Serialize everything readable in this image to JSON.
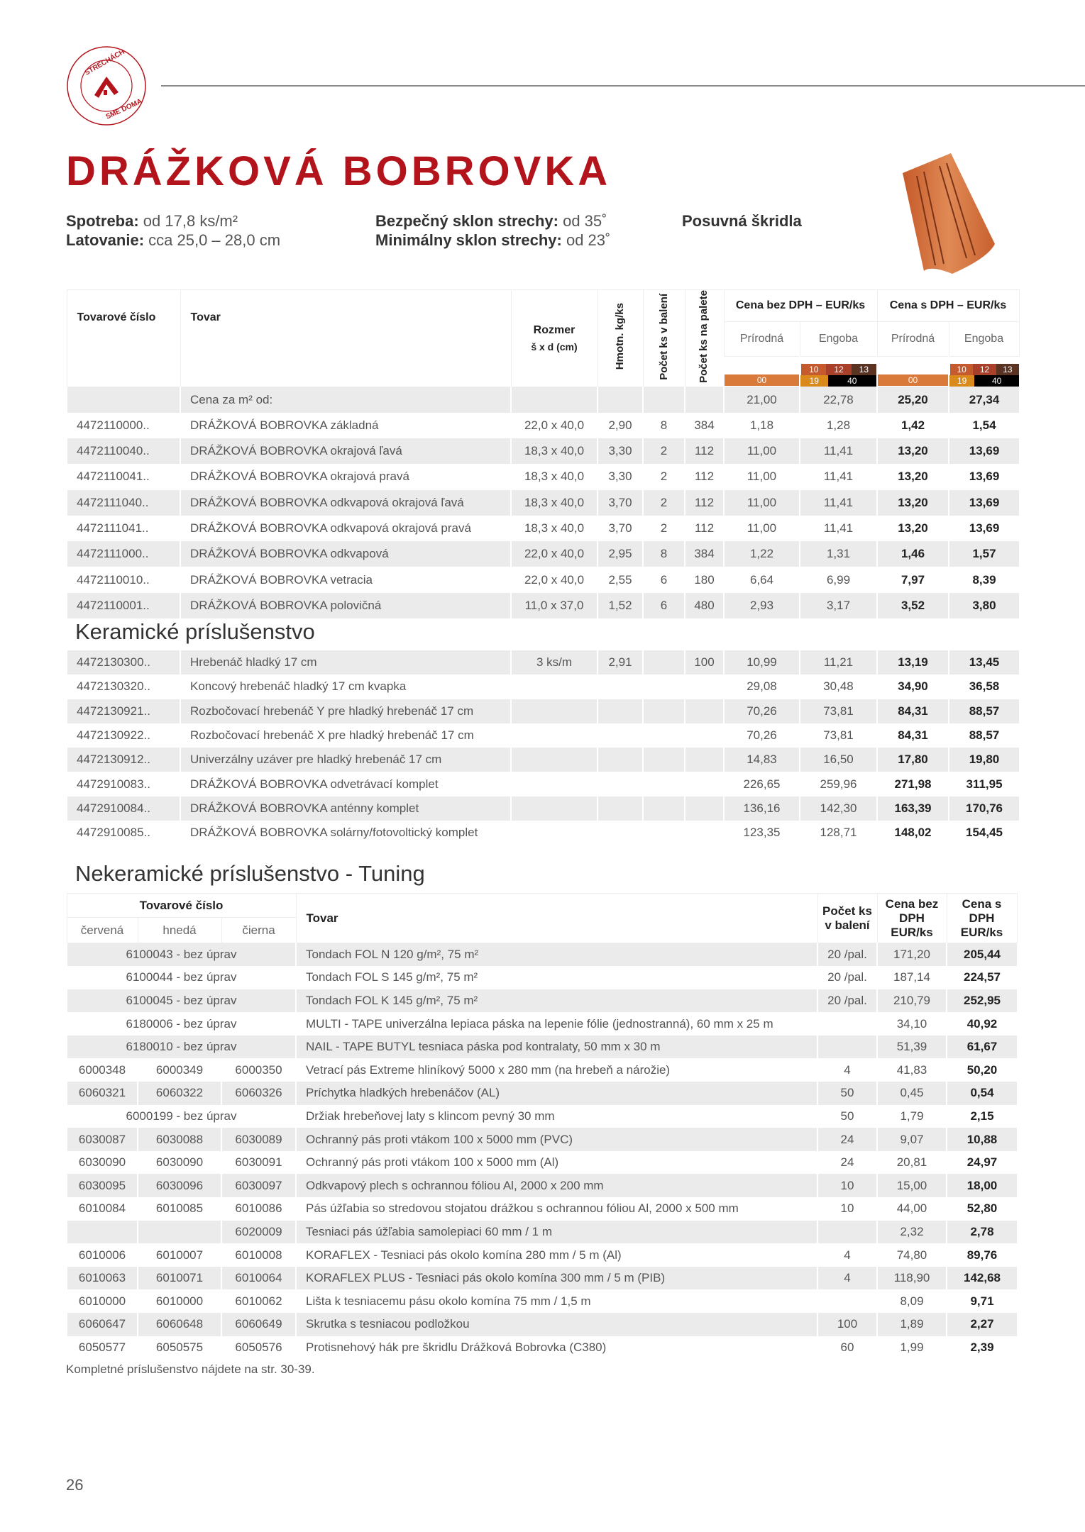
{
  "logo": {
    "text_top": "V STRECHÁCH",
    "text_bottom": "SME DOMA"
  },
  "title": "DRÁŽKOVÁ BOBROVKA",
  "specs": {
    "spotreba_label": "Spotreba:",
    "spotreba_value": " od 17,8 ks/m²",
    "latovanie_label": "Latovanie:",
    "latovanie_value": " cca 25,0 – 28,0 cm",
    "bezpecny_label": "Bezpečný sklon strechy:",
    "bezpecny_value": " od 35˚",
    "minimalny_label": "Minimálny sklon strechy:",
    "minimalny_value": " od 23˚",
    "type": "Posuvná škridla"
  },
  "table1": {
    "headers": {
      "code": "Tovarové číslo",
      "name": "Tovar",
      "size": "Rozmer",
      "size_unit": "š x d (cm)",
      "weight": "Hmotn. kg/ks",
      "pack": "Počet ks v balení",
      "pallet": "Počet ks na palete",
      "price_no_vat": "Cena bez DPH – EUR/ks",
      "price_vat": "Cena s DPH – EUR/ks",
      "natural": "Prírodná",
      "engoba": "Engoba"
    },
    "swatches": {
      "natural": [
        {
          "code": "00",
          "color": "#d9793a"
        }
      ],
      "engoba_top": [
        {
          "code": "10",
          "color": "#c45a2e"
        },
        {
          "code": "12",
          "color": "#a8402a"
        },
        {
          "code": "13",
          "color": "#5a3322"
        }
      ],
      "engoba_bottom": [
        {
          "code": "19",
          "color": "#d98a1a"
        },
        {
          "code": "40",
          "color": "#000000"
        }
      ]
    },
    "m2_row": {
      "label": "Cena za m² od:",
      "prices": [
        "21,00",
        "22,78",
        "25,20",
        "27,34"
      ]
    },
    "rows": [
      [
        "4472110000..",
        "DRÁŽKOVÁ BOBROVKA základná",
        "22,0 x 40,0",
        "2,90",
        "8",
        "384",
        "1,18",
        "1,28",
        "1,42",
        "1,54"
      ],
      [
        "4472110040..",
        "DRÁŽKOVÁ BOBROVKA okrajová ľavá",
        "18,3 x 40,0",
        "3,30",
        "2",
        "112",
        "11,00",
        "11,41",
        "13,20",
        "13,69"
      ],
      [
        "4472110041..",
        "DRÁŽKOVÁ BOBROVKA okrajová pravá",
        "18,3 x 40,0",
        "3,30",
        "2",
        "112",
        "11,00",
        "11,41",
        "13,20",
        "13,69"
      ],
      [
        "4472111040..",
        "DRÁŽKOVÁ BOBROVKA odkvapová okrajová ľavá",
        "18,3 x 40,0",
        "3,70",
        "2",
        "112",
        "11,00",
        "11,41",
        "13,20",
        "13,69"
      ],
      [
        "4472111041..",
        "DRÁŽKOVÁ BOBROVKA odkvapová okrajová pravá",
        "18,3 x 40,0",
        "3,70",
        "2",
        "112",
        "11,00",
        "11,41",
        "13,20",
        "13,69"
      ],
      [
        "4472111000..",
        "DRÁŽKOVÁ BOBROVKA odkvapová",
        "22,0 x 40,0",
        "2,95",
        "8",
        "384",
        "1,22",
        "1,31",
        "1,46",
        "1,57"
      ],
      [
        "4472110010..",
        "DRÁŽKOVÁ BOBROVKA vetracia",
        "22,0 x 40,0",
        "2,55",
        "6",
        "180",
        "6,64",
        "6,99",
        "7,97",
        "8,39"
      ],
      [
        "4472110001..",
        "DRÁŽKOVÁ BOBROVKA polovičná",
        "11,0 x 37,0",
        "1,52",
        "6",
        "480",
        "2,93",
        "3,17",
        "3,52",
        "3,80"
      ]
    ]
  },
  "section2_title": "Keramické príslušenstvo",
  "table2": {
    "rows": [
      [
        "4472130300..",
        "Hrebenáč hladký 17 cm",
        "3 ks/m",
        "2,91",
        "",
        "100",
        "10,99",
        "11,21",
        "13,19",
        "13,45"
      ],
      [
        "4472130320..",
        "Koncový hrebenáč hladký 17 cm kvapka",
        "",
        "",
        "",
        "",
        "29,08",
        "30,48",
        "34,90",
        "36,58"
      ],
      [
        "4472130921..",
        "Rozbočovací hrebenáč Y pre hladký hrebenáč 17 cm",
        "",
        "",
        "",
        "",
        "70,26",
        "73,81",
        "84,31",
        "88,57"
      ],
      [
        "4472130922..",
        "Rozbočovací hrebenáč X pre hladký hrebenáč 17 cm",
        "",
        "",
        "",
        "",
        "70,26",
        "73,81",
        "84,31",
        "88,57"
      ],
      [
        "4472130912..",
        "Univerzálny uzáver pre hladký hrebenáč 17 cm",
        "",
        "",
        "",
        "",
        "14,83",
        "16,50",
        "17,80",
        "19,80"
      ],
      [
        "4472910083..",
        "DRÁŽKOVÁ BOBROVKA odvetrávací komplet",
        "",
        "",
        "",
        "",
        "226,65",
        "259,96",
        "271,98",
        "311,95"
      ],
      [
        "4472910084..",
        "DRÁŽKOVÁ BOBROVKA anténny komplet",
        "",
        "",
        "",
        "",
        "136,16",
        "142,30",
        "163,39",
        "170,76"
      ],
      [
        "4472910085..",
        "DRÁŽKOVÁ BOBROVKA solárny/fotovoltický komplet",
        "",
        "",
        "",
        "",
        "123,35",
        "128,71",
        "148,02",
        "154,45"
      ]
    ]
  },
  "section3_title": "Nekeramické príslušenstvo - Tuning",
  "table3": {
    "headers": {
      "code": "Tovarové číslo",
      "red": "červená",
      "brown": "hnedá",
      "black": "čierna",
      "name": "Tovar",
      "pack": "Počet ks v balení",
      "price_no_vat": "Cena bez DPH EUR/ks",
      "price_vat": "Cena s DPH EUR/ks"
    },
    "rows": [
      {
        "merged": "6100043 - bez úprav",
        "name": "Tondach FOL N 120 g/m², 75 m²",
        "pack": "20 /pal.",
        "p1": "171,20",
        "p2": "205,44"
      },
      {
        "merged": "6100044 - bez úprav",
        "name": "Tondach FOL S 145 g/m², 75 m²",
        "pack": "20 /pal.",
        "p1": "187,14",
        "p2": "224,57"
      },
      {
        "merged": "6100045 - bez úprav",
        "name": "Tondach FOL K 145 g/m², 75 m²",
        "pack": "20 /pal.",
        "p1": "210,79",
        "p2": "252,95"
      },
      {
        "merged": "6180006 - bez úprav",
        "name": "MULTI - TAPE univerzálna lepiaca páska na lepenie fólie (jednostranná), 60 mm x 25 m",
        "pack": "",
        "p1": "34,10",
        "p2": "40,92"
      },
      {
        "merged": "6180010 - bez úprav",
        "name": "NAIL - TAPE BUTYL tesniaca páska pod kontralaty, 50 mm x 30 m",
        "pack": "",
        "p1": "51,39",
        "p2": "61,67"
      },
      {
        "red": "6000348",
        "brown": "6000349",
        "black": "6000350",
        "name": "Vetrací pás Extreme hliníkový 5000 x 280 mm (na hrebeň a nárožie)",
        "pack": "4",
        "p1": "41,83",
        "p2": "50,20"
      },
      {
        "red": "6060321",
        "brown": "6060322",
        "black": "6060326",
        "name": "Príchytka hladkých hrebenáčov (AL)",
        "pack": "50",
        "p1": "0,45",
        "p2": "0,54"
      },
      {
        "merged": "6000199 - bez úprav",
        "name": "Držiak hrebeňovej laty s klincom pevný 30 mm",
        "pack": "50",
        "p1": "1,79",
        "p2": "2,15"
      },
      {
        "red": "6030087",
        "brown": "6030088",
        "black": "6030089",
        "name": "Ochranný pás proti vtákom 100 x 5000 mm (PVC)",
        "pack": "24",
        "p1": "9,07",
        "p2": "10,88"
      },
      {
        "red": "6030090",
        "brown": "6030090",
        "black": "6030091",
        "name": "Ochranný pás proti vtákom 100 x 5000 mm (Al)",
        "pack": "24",
        "p1": "20,81",
        "p2": "24,97"
      },
      {
        "red": "6030095",
        "brown": "6030096",
        "black": "6030097",
        "name": "Odkvapový plech s ochrannou fóliou Al, 2000 x 200 mm",
        "pack": "10",
        "p1": "15,00",
        "p2": "18,00"
      },
      {
        "red": "6010084",
        "brown": "6010085",
        "black": "6010086",
        "name": "Pás úžľabia so stredovou stojatou drážkou s ochrannou fóliou Al, 2000 x 500 mm",
        "pack": "10",
        "p1": "44,00",
        "p2": "52,80"
      },
      {
        "red": "",
        "brown": "",
        "black": "6020009",
        "name": "Tesniaci pás úžľabia  samolepiaci 60 mm / 1 m",
        "pack": "",
        "p1": "2,32",
        "p2": "2,78"
      },
      {
        "red": "6010006",
        "brown": "6010007",
        "black": "6010008",
        "name": "KORAFLEX - Tesniaci pás okolo komína 280 mm / 5 m (Al)",
        "pack": "4",
        "p1": "74,80",
        "p2": "89,76"
      },
      {
        "red": "6010063",
        "brown": "6010071",
        "black": "6010064",
        "name": "KORAFLEX PLUS - Tesniaci pás okolo komína 300 mm / 5 m (PIB)",
        "pack": "4",
        "p1": "118,90",
        "p2": "142,68"
      },
      {
        "red": "6010000",
        "brown": "6010000",
        "black": "6010062",
        "name": "Lišta k tesniacemu pásu okolo komína 75 mm / 1,5 m",
        "pack": "",
        "p1": "8,09",
        "p2": "9,71"
      },
      {
        "red": "6060647",
        "brown": "6060648",
        "black": "6060649",
        "name": "Skrutka s tesniacou podložkou",
        "pack": "100",
        "p1": "1,89",
        "p2": "2,27"
      },
      {
        "red": "6050577",
        "brown": "6050575",
        "black": "6050576",
        "name": "Protisnehový hák pre škridlu Drážková Bobrovka (C380)",
        "pack": "60",
        "p1": "1,99",
        "p2": "2,39"
      }
    ]
  },
  "footnote": "Kompletné príslušenstvo nájdete na str. 30-39.",
  "page_number": "26",
  "colors": {
    "brand_red": "#b3141c",
    "row_stripe": "#ebebeb"
  }
}
